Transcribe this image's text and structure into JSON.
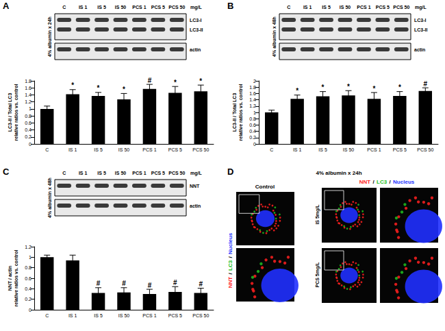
{
  "chart_data": [
    {
      "type": "bar",
      "title": "A",
      "categories": [
        "C",
        "IS 1",
        "IS 5",
        "IS 50",
        "PCS 1",
        "PCS 5",
        "PCS 50"
      ],
      "values": [
        1.0,
        1.42,
        1.37,
        1.27,
        1.57,
        1.46,
        1.5
      ],
      "errors": [
        0.08,
        0.13,
        0.1,
        0.17,
        0.13,
        0.18,
        0.18
      ],
      "annotations": [
        null,
        "*",
        "*",
        "*",
        "#",
        "*",
        "*"
      ],
      "color": "#000000",
      "ylabel": "LC3-II / Total LC3\nrelative ratios vs. control",
      "ylim": [
        0,
        1.8
      ],
      "yticks": [
        0,
        0.2,
        0.4,
        0.6,
        0.8,
        1,
        1.2,
        1.4,
        1.6,
        1.8
      ],
      "grid": false,
      "blot": {
        "condition": "4% albumin x 24h",
        "unit": "mg/L",
        "rows": [
          [
            "LC3-I",
            "LC3-II"
          ],
          [
            "actin"
          ]
        ]
      }
    },
    {
      "type": "bar",
      "title": "B",
      "categories": [
        "C",
        "IS 1",
        "IS 5",
        "IS 50",
        "PCS 1",
        "PCS 5",
        "PCS 50"
      ],
      "values": [
        1.0,
        1.43,
        1.51,
        1.54,
        1.43,
        1.52,
        1.68
      ],
      "errors": [
        0.07,
        0.12,
        0.15,
        0.15,
        0.2,
        0.14,
        0.1
      ],
      "annotations": [
        null,
        "*",
        "*",
        "*",
        "*",
        "*",
        "#"
      ],
      "color": "#000000",
      "ylabel": "LC3-II / Total LC3\nrelative ratios vs. control",
      "ylim": [
        0,
        2
      ],
      "yticks": [
        0,
        0.2,
        0.4,
        0.6,
        0.8,
        1,
        1.2,
        1.4,
        1.6,
        1.8,
        2
      ],
      "grid": false,
      "blot": {
        "condition": "4% albumin x 48h",
        "unit": "mg/L",
        "rows": [
          [
            "LC3-I",
            "LC3-II"
          ],
          [
            "actin"
          ]
        ]
      }
    },
    {
      "type": "bar",
      "title": "C",
      "categories": [
        "C",
        "IS 1",
        "IS 5",
        "IS 50",
        "PCS 1",
        "PCS 5",
        "PCS 50"
      ],
      "values": [
        1.0,
        0.94,
        0.32,
        0.33,
        0.3,
        0.34,
        0.32
      ],
      "errors": [
        0.04,
        0.1,
        0.1,
        0.09,
        0.09,
        0.1,
        0.09
      ],
      "annotations": [
        null,
        null,
        "#",
        "#",
        "#",
        "#",
        "#"
      ],
      "color": "#000000",
      "ylabel": "NNT / actin\nrelative ratios vs. control",
      "ylim": [
        0,
        1.2
      ],
      "yticks": [
        0,
        0.2,
        0.4,
        0.6,
        0.8,
        1,
        1.2
      ],
      "grid": false,
      "blot": {
        "condition": "4% albumin x 48h",
        "unit": "mg/L",
        "rows": [
          [
            "NNT"
          ],
          [
            "actin"
          ]
        ]
      }
    }
  ],
  "panel_d": {
    "title": "D",
    "condition": "4% albumin x 24h",
    "stains": [
      {
        "name": "NNT",
        "color": "#ff2020"
      },
      {
        "name": "LC3",
        "color": "#20c020"
      },
      {
        "name": "Nucleus",
        "color": "#2030ff"
      }
    ],
    "separator": "/",
    "images": [
      "Control",
      "IS 5mg/L",
      "PCS 5mg/L"
    ]
  }
}
